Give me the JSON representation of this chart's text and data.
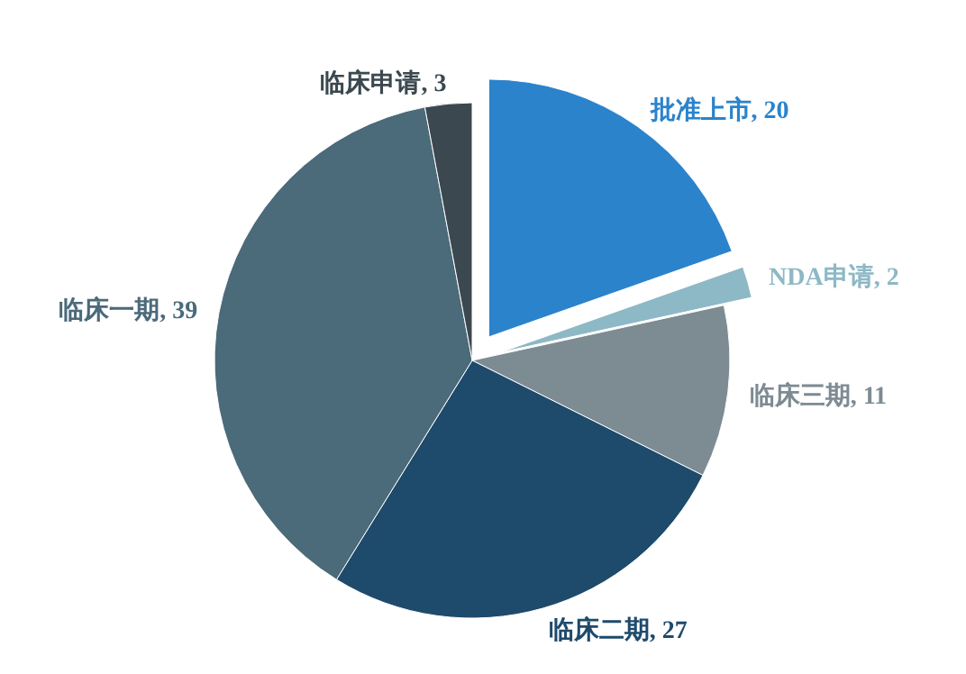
{
  "chart_data": {
    "type": "pie",
    "categories": [
      "批准上市",
      "NDA申请",
      "临床三期",
      "临床二期",
      "临床一期",
      "临床申请"
    ],
    "values": [
      20,
      2,
      11,
      27,
      39,
      3
    ],
    "colors": [
      "#2b83cc",
      "#8db8c6",
      "#7d8b93",
      "#1e4a6c",
      "#4b6a7a",
      "#3b484f"
    ],
    "value_labels": [
      ", 20",
      ", 2",
      ", 11",
      ", 27",
      ", 39",
      ", 3"
    ]
  }
}
